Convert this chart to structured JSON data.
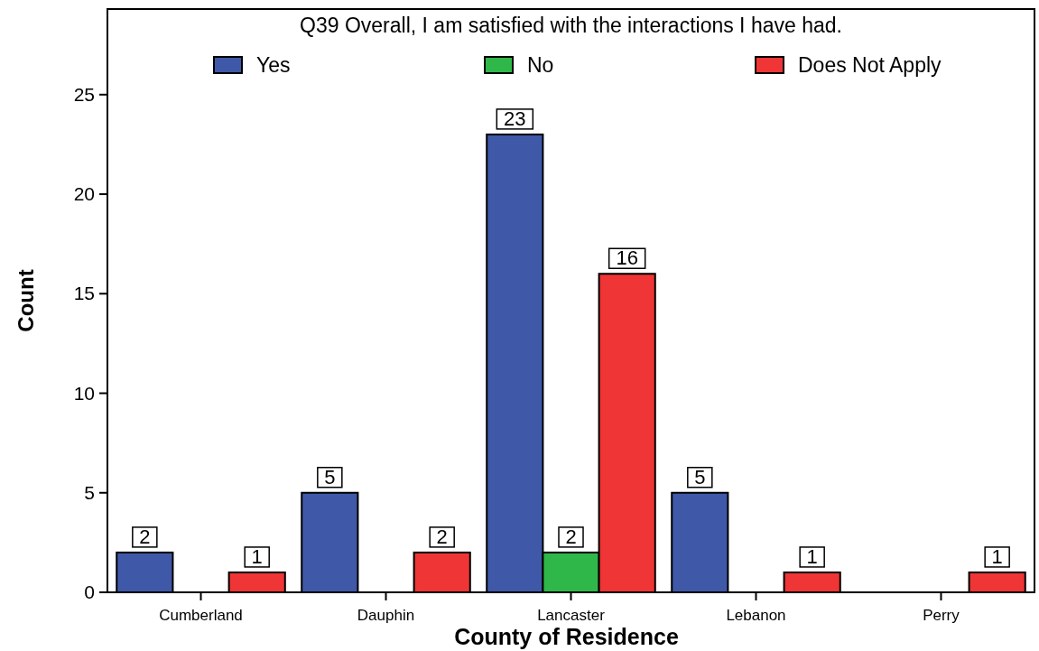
{
  "chart_data": {
    "type": "bar",
    "title": "Q39 Overall, I am satisfied with the interactions I have had.",
    "xlabel": "County of Residence",
    "ylabel": "Count",
    "categories": [
      "Cumberland",
      "Dauphin",
      "Lancaster",
      "Lebanon",
      "Perry"
    ],
    "series": [
      {
        "name": "Yes",
        "color": "#3f58a8",
        "values": [
          2,
          5,
          23,
          5,
          null
        ]
      },
      {
        "name": "No",
        "color": "#2fb74a",
        "values": [
          null,
          null,
          2,
          null,
          null
        ]
      },
      {
        "name": "Does Not Apply",
        "color": "#ef3535",
        "values": [
          1,
          2,
          16,
          1,
          1
        ]
      }
    ],
    "ylim": [
      0,
      29.3
    ],
    "yticks": [
      0,
      5,
      10,
      15,
      20,
      25
    ],
    "legend": "top",
    "data_labels": true
  }
}
